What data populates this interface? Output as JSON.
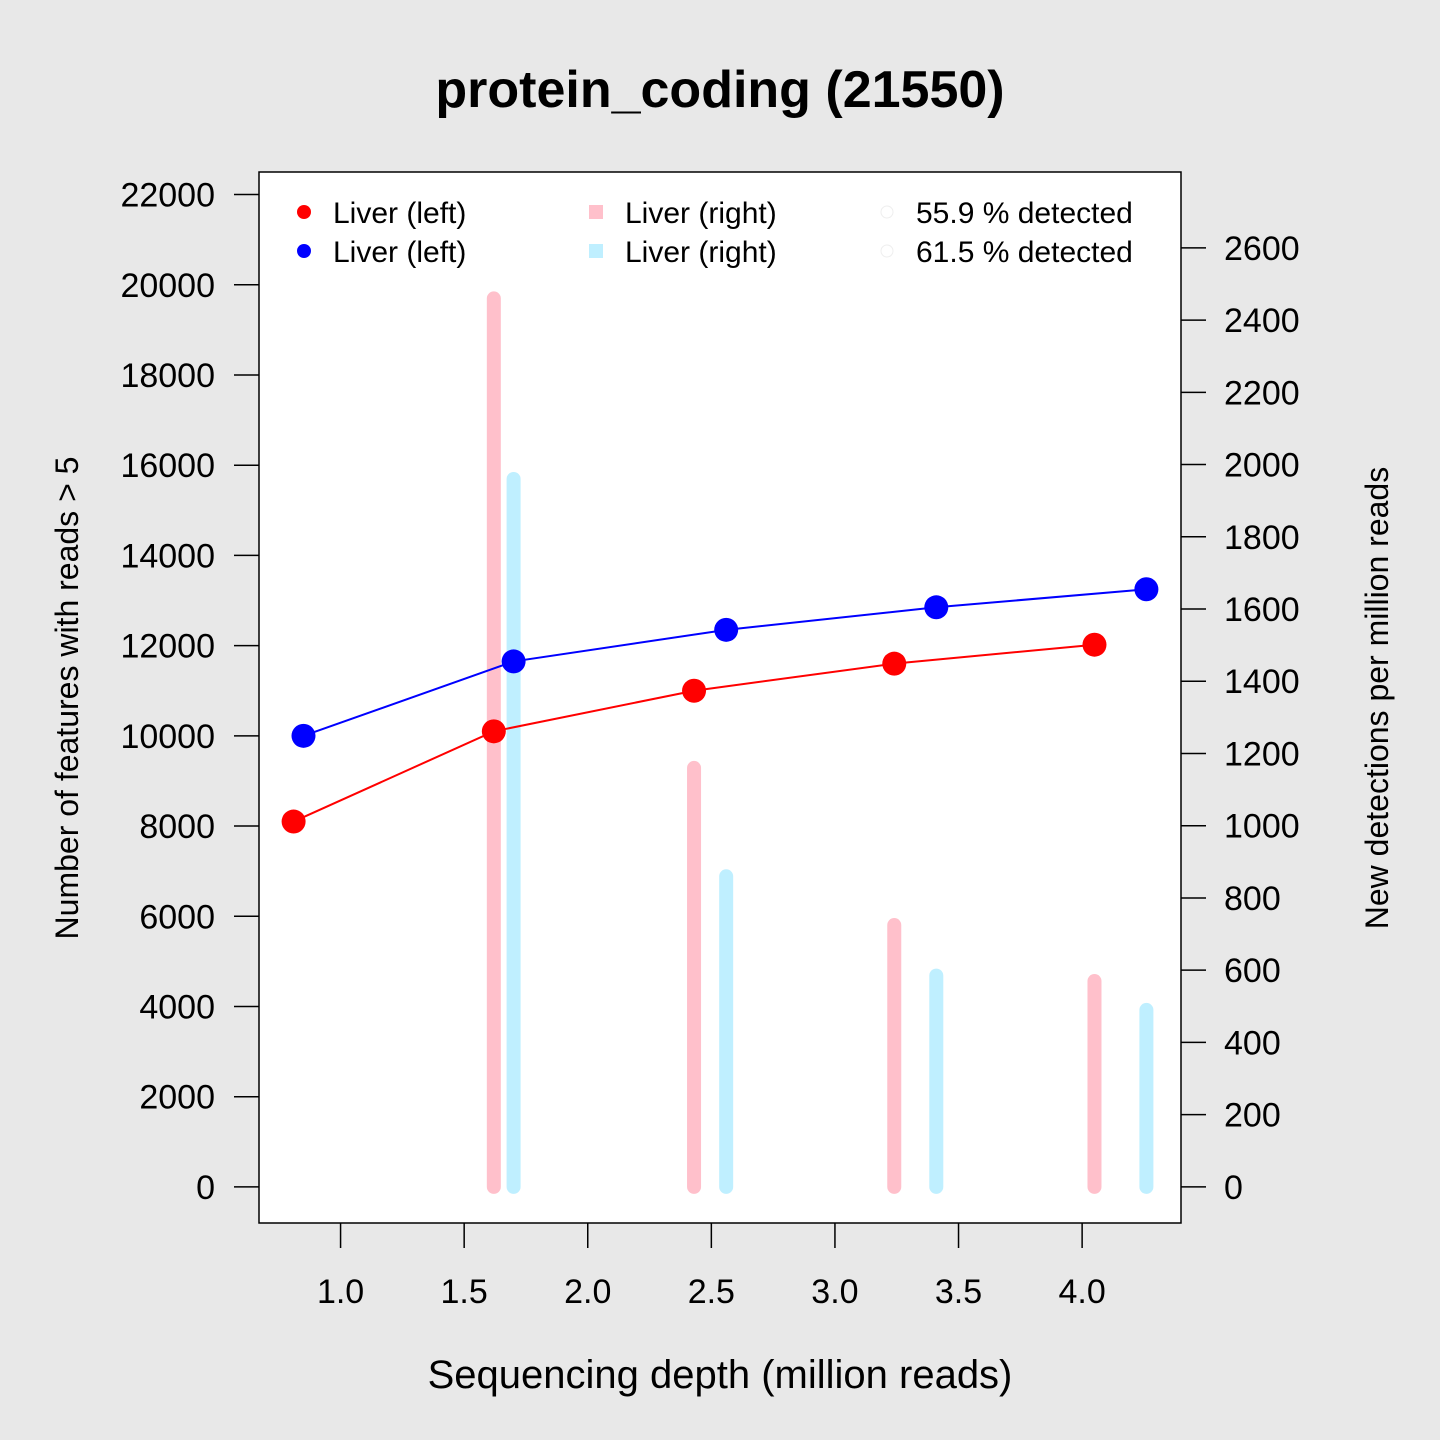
{
  "chart_data": {
    "type": "line",
    "title": "protein_coding (21550)",
    "xlabel": "Sequencing depth (million reads)",
    "ylabel_left": "Number of features with reads > 5",
    "ylabel_right": "New detections per million reads",
    "xlim": [
      0.67,
      4.4
    ],
    "ylim_left": [
      -800,
      22500
    ],
    "ylim_right": [
      -100,
      2810
    ],
    "x_ticks": [
      1.0,
      1.5,
      2.0,
      2.5,
      3.0,
      3.5,
      4.0
    ],
    "x_tick_labels": [
      "1.0",
      "1.5",
      "2.0",
      "2.5",
      "3.0",
      "3.5",
      "4.0"
    ],
    "y_left_ticks": [
      0,
      2000,
      4000,
      6000,
      8000,
      10000,
      12000,
      14000,
      16000,
      18000,
      20000,
      22000
    ],
    "y_left_tick_labels": [
      "0",
      "2000",
      "4000",
      "6000",
      "8000",
      "10000",
      "12000",
      "14000",
      "16000",
      "18000",
      "20000",
      "22000"
    ],
    "y_right_ticks": [
      0,
      200,
      400,
      600,
      800,
      1000,
      1200,
      1400,
      1600,
      1800,
      2000,
      2200,
      2400,
      2600
    ],
    "y_right_tick_labels": [
      "0",
      "200",
      "400",
      "600",
      "800",
      "1000",
      "1200",
      "1400",
      "1600",
      "1800",
      "2000",
      "2200",
      "2400",
      "2600"
    ],
    "legend_placement": "top",
    "series": [
      {
        "name": "Liver (left)",
        "kind": "line",
        "axis": "left",
        "color": "#ff0000",
        "x": [
          0.81,
          1.62,
          2.43,
          3.24,
          4.05
        ],
        "y": [
          8100,
          10100,
          11000,
          11600,
          12020
        ]
      },
      {
        "name": "Liver (left)",
        "kind": "line",
        "axis": "left",
        "color": "#0000ff",
        "x": [
          0.85,
          1.7,
          2.56,
          3.41,
          4.26
        ],
        "y": [
          10000,
          11650,
          12350,
          12850,
          13250
        ]
      },
      {
        "name": "Liver (right)",
        "kind": "bar",
        "axis": "right",
        "color": "#ffc0cb",
        "x": [
          1.62,
          2.43,
          3.24,
          4.05
        ],
        "y": [
          2460,
          1160,
          725,
          570
        ]
      },
      {
        "name": "Liver (right)",
        "kind": "bar",
        "axis": "right",
        "color": "#bfefff",
        "x": [
          1.7,
          2.56,
          3.41,
          4.26
        ],
        "y": [
          1960,
          860,
          585,
          490
        ]
      }
    ],
    "detected_labels": [
      "55.9 % detected",
      "61.5 % detected"
    ]
  }
}
